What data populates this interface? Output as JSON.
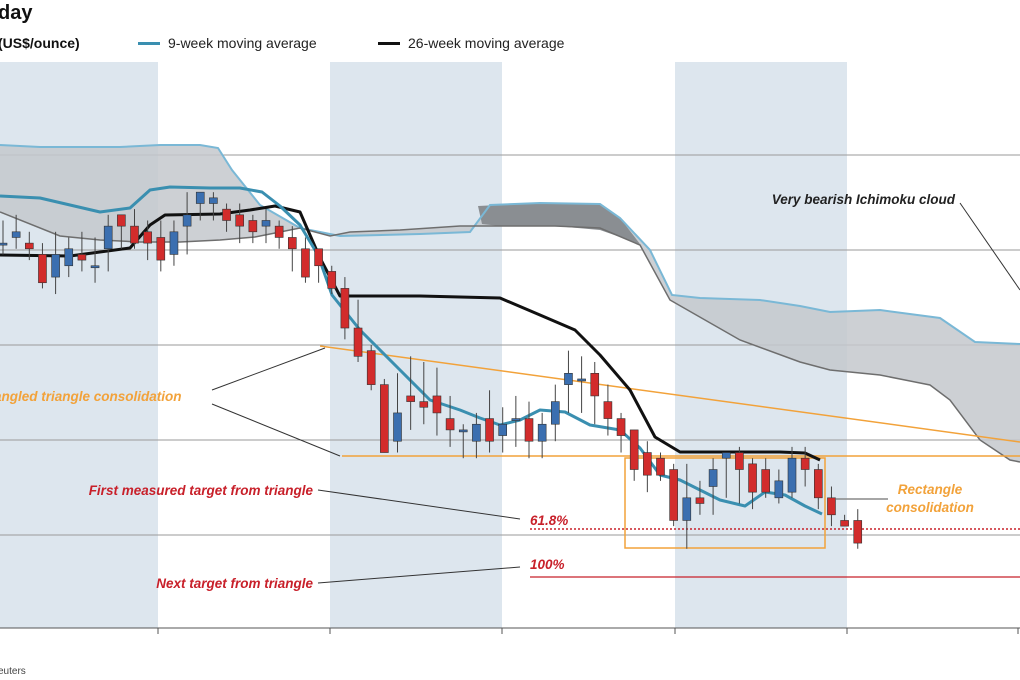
{
  "title": "day",
  "unit_label": "(US$/ounce)",
  "legend": [
    {
      "label": "9-week moving average",
      "color": "#3a8fb0"
    },
    {
      "label": "26-week moving average",
      "color": "#111111"
    }
  ],
  "source": "euters",
  "colors": {
    "up": "#3b6fb0",
    "down": "#d22c2c",
    "ma9": "#3a8fb0",
    "ma26": "#111111",
    "orange": "#f2a23a",
    "red": "#c8202a",
    "band": "#dde6ee"
  },
  "annotations": {
    "triangle": "angled triangle consolidation",
    "first_target": "First measured target from triangle",
    "next_target": "Next target from triangle",
    "fib_618": "61.8%",
    "fib_100": "100%",
    "rectangle": "Rectangle\nconsolidation",
    "cloud": "Very bearish Ichimoku cloud"
  },
  "chart_data": {
    "type": "candlestick",
    "title": "day",
    "ylabel": "(US$/ounce)",
    "grid": true,
    "legend_position": "top",
    "series": [
      {
        "name": "9-week moving average"
      },
      {
        "name": "26-week moving average"
      }
    ],
    "note": "Price axis tick labels are not visible in the image; values below are in relative price units (100 = top of plot, 0 = bottom).",
    "candles": [
      [
        68,
        68,
        72,
        66
      ],
      [
        69,
        70,
        73,
        67
      ],
      [
        68,
        67,
        70,
        65
      ],
      [
        66,
        61,
        68,
        60
      ],
      [
        62,
        66,
        70,
        59
      ],
      [
        64,
        67,
        69,
        62
      ],
      [
        66,
        65,
        70,
        63
      ],
      [
        64,
        64,
        69,
        61
      ],
      [
        67,
        71,
        73,
        63
      ],
      [
        73,
        71,
        73,
        67
      ],
      [
        71,
        68,
        74,
        67
      ],
      [
        70,
        68,
        72,
        65
      ],
      [
        69,
        65,
        72,
        63
      ],
      [
        66,
        70,
        72,
        64
      ],
      [
        71,
        73,
        77,
        66
      ],
      [
        75,
        77,
        77,
        72
      ],
      [
        75,
        76,
        77,
        72
      ],
      [
        74,
        72,
        75,
        70
      ],
      [
        73,
        71,
        75,
        68
      ],
      [
        72,
        70,
        73,
        68
      ],
      [
        71,
        72,
        74,
        68
      ],
      [
        71,
        69,
        72,
        67
      ],
      [
        69,
        67,
        71,
        63
      ],
      [
        67,
        62,
        69,
        61
      ],
      [
        67,
        64,
        67,
        61
      ],
      [
        63,
        60,
        64,
        59
      ],
      [
        60,
        53,
        62,
        51
      ],
      [
        53,
        48,
        58,
        47
      ],
      [
        49,
        43,
        50,
        42
      ],
      [
        43,
        31,
        44,
        31
      ],
      [
        33,
        38,
        45,
        31
      ],
      [
        41,
        40,
        48,
        35
      ],
      [
        40,
        39,
        47,
        36
      ],
      [
        41,
        38,
        46,
        34
      ],
      [
        37,
        35,
        41,
        32
      ],
      [
        35,
        35,
        36,
        30
      ],
      [
        33,
        36,
        38,
        30
      ],
      [
        37,
        33,
        42,
        31
      ],
      [
        34,
        36,
        39,
        31
      ],
      [
        37,
        37,
        41,
        32
      ],
      [
        37,
        33,
        40,
        30
      ],
      [
        33,
        36,
        38,
        30
      ],
      [
        36,
        40,
        43,
        33
      ],
      [
        43,
        45,
        49,
        38
      ],
      [
        44,
        44,
        48,
        38
      ],
      [
        45,
        41,
        47,
        36
      ],
      [
        40,
        37,
        43,
        34
      ],
      [
        37,
        34,
        38,
        31
      ],
      [
        35,
        28,
        35,
        26
      ],
      [
        31,
        27,
        33,
        24
      ],
      [
        30,
        27,
        31,
        26
      ],
      [
        28,
        19,
        29,
        18
      ],
      [
        19,
        23,
        29,
        14
      ],
      [
        23,
        22,
        26,
        20
      ],
      [
        25,
        28,
        30,
        20
      ],
      [
        30,
        31,
        31,
        23
      ],
      [
        31,
        28,
        32,
        22
      ],
      [
        29,
        24,
        30,
        21
      ],
      [
        28,
        24,
        30,
        23
      ],
      [
        23,
        26,
        28,
        22
      ],
      [
        24,
        30,
        32,
        23
      ],
      [
        30,
        28,
        32,
        25
      ],
      [
        28,
        23,
        29,
        21
      ],
      [
        23,
        20,
        25,
        18
      ],
      [
        19,
        18,
        20,
        18
      ],
      [
        19,
        15,
        21,
        14
      ]
    ]
  }
}
